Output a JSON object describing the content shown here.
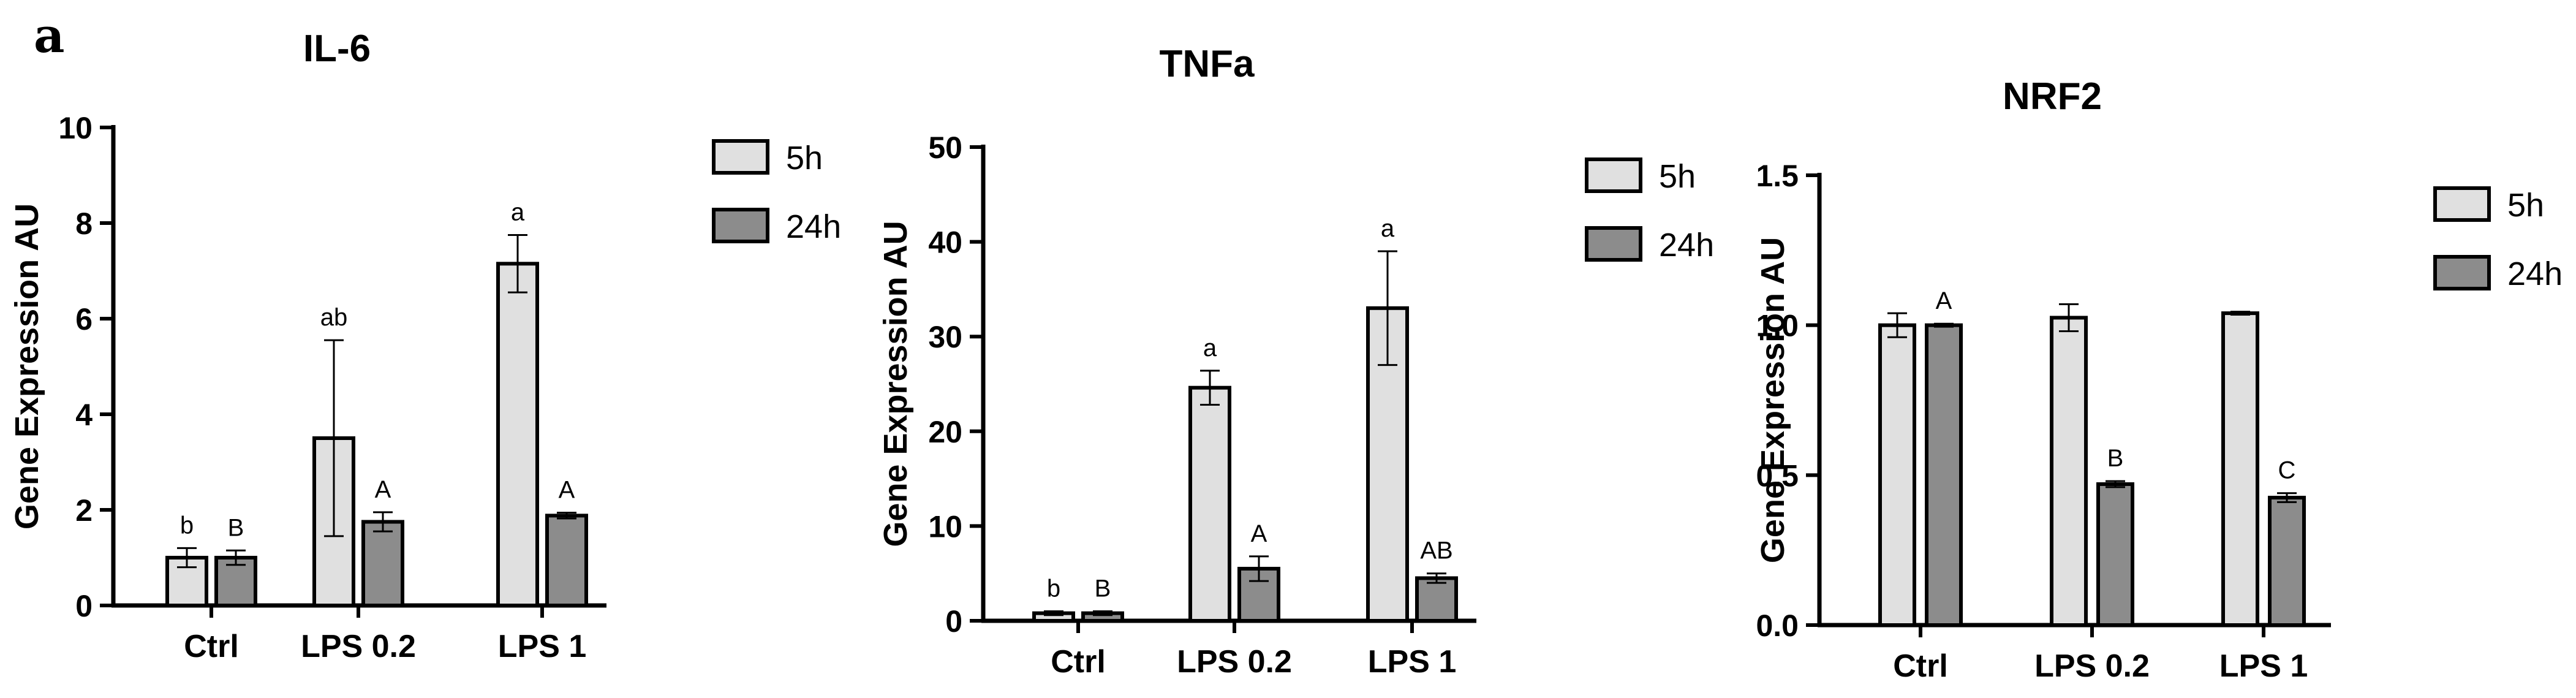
{
  "panel_label": "a",
  "colors": {
    "h5": "#e0e0e0",
    "h24": "#8c8c8c",
    "stroke": "#000000"
  },
  "chart_data": [
    {
      "type": "bar",
      "title": "IL-6",
      "ylabel": "Gene Expression AU",
      "categories": [
        "Ctrl",
        "LPS 0.2",
        "LPS 1"
      ],
      "ylim": [
        0,
        10
      ],
      "yticks": [
        "0",
        "2",
        "4",
        "6",
        "8",
        "10"
      ],
      "grid": false,
      "legend_position": "right",
      "series": [
        {
          "name": "5h",
          "values": [
            1.0,
            3.5,
            7.15
          ],
          "errors": [
            0.2,
            2.05,
            0.6
          ],
          "letters": [
            "b",
            "ab",
            "a"
          ]
        },
        {
          "name": "24h",
          "values": [
            1.0,
            1.75,
            1.88
          ],
          "errors": [
            0.15,
            0.2,
            0.06
          ],
          "letters": [
            "B",
            "A",
            "A"
          ]
        }
      ]
    },
    {
      "type": "bar",
      "title": "TNFa",
      "ylabel": "Gene Expression AU",
      "categories": [
        "Ctrl",
        "LPS 0.2",
        "LPS 1"
      ],
      "ylim": [
        0,
        50
      ],
      "yticks": [
        "0",
        "10",
        "20",
        "30",
        "40",
        "50"
      ],
      "grid": false,
      "legend_position": "right",
      "series": [
        {
          "name": "5h",
          "values": [
            0.8,
            24.6,
            33.0
          ],
          "errors": [
            0.2,
            1.8,
            6.0
          ],
          "letters": [
            "b",
            "a",
            "a"
          ]
        },
        {
          "name": "24h",
          "values": [
            0.8,
            5.5,
            4.5
          ],
          "errors": [
            0.2,
            1.3,
            0.5
          ],
          "letters": [
            "B",
            "A",
            "AB"
          ]
        }
      ]
    },
    {
      "type": "bar",
      "title": "NRF2",
      "ylabel": "Gene Expression AU",
      "categories": [
        "Ctrl",
        "LPS 0.2",
        "LPS 1"
      ],
      "ylim": [
        0,
        1.5
      ],
      "yticks": [
        "0.0",
        "0.5",
        "1.0",
        "1.5"
      ],
      "grid": false,
      "legend_position": "right",
      "series": [
        {
          "name": "5h",
          "values": [
            1.0,
            1.025,
            1.04
          ],
          "errors": [
            0.04,
            0.045,
            0.005
          ],
          "letters": [
            "",
            "",
            ""
          ]
        },
        {
          "name": "24h",
          "values": [
            1.0,
            0.47,
            0.425
          ],
          "errors": [
            0.005,
            0.01,
            0.015
          ],
          "letters": [
            "A",
            "B",
            "C"
          ]
        }
      ]
    }
  ]
}
